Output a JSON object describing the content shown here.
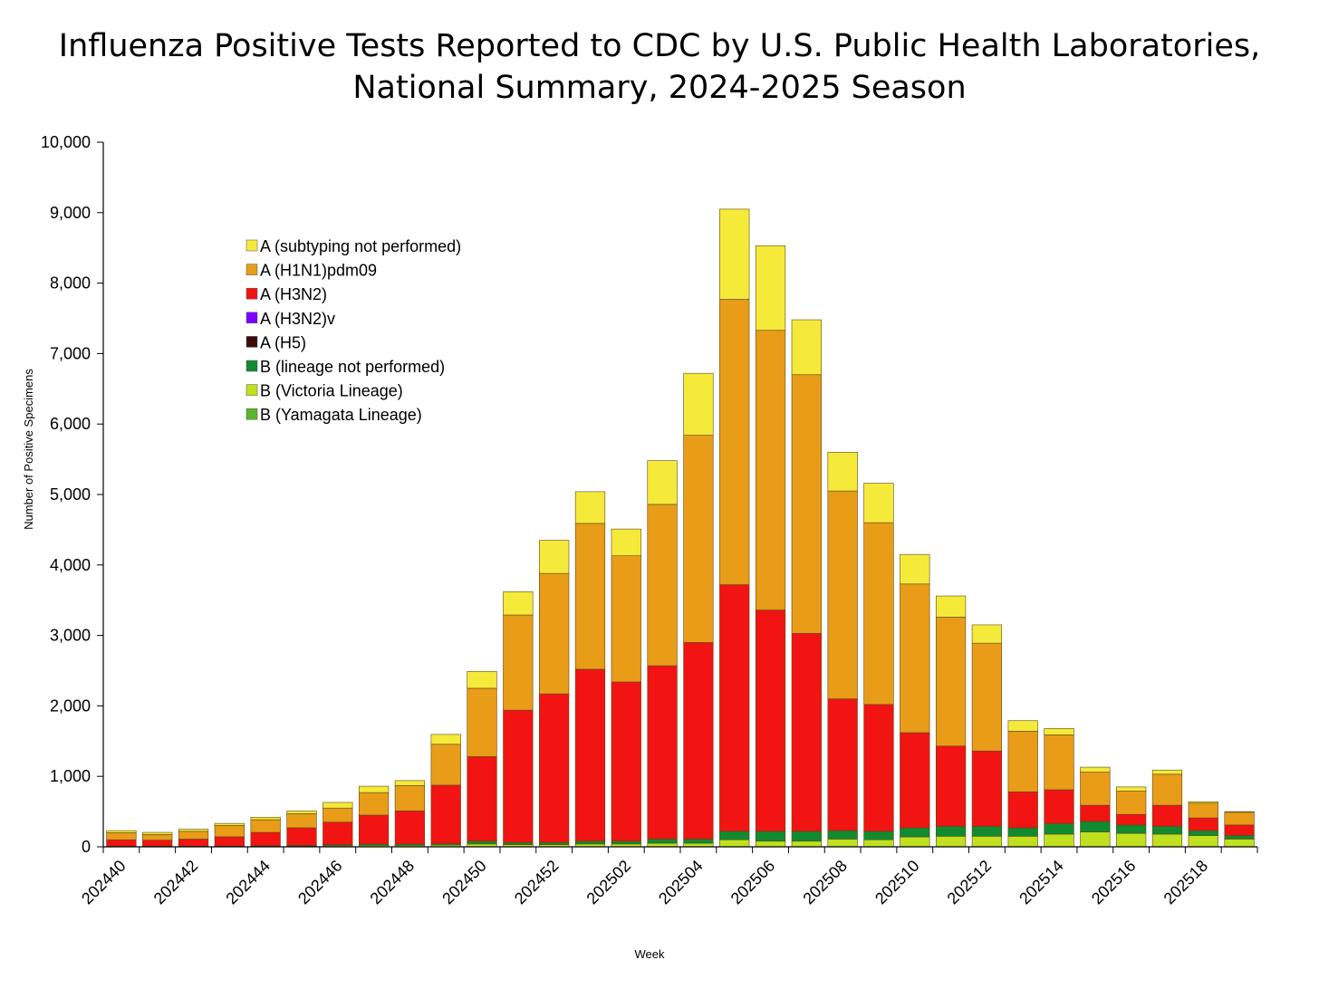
{
  "chart_data": {
    "type": "bar",
    "stacked": true,
    "title": "Influenza Positive Tests Reported to CDC by U.S. Public Health Laboratories,\nNational Summary, 2024-2025 Season",
    "xlabel": "Week",
    "ylabel": "Number of Positive Specimens",
    "ylim": [
      0,
      10000
    ],
    "yticks": [
      0,
      1000,
      2000,
      3000,
      4000,
      5000,
      6000,
      7000,
      8000,
      9000,
      10000
    ],
    "ytick_labels": [
      "0",
      "1,000",
      "2,000",
      "3,000",
      "4,000",
      "5,000",
      "6,000",
      "7,000",
      "8,000",
      "9,000",
      "10,000"
    ],
    "xtick_labels": [
      "202440",
      "202442",
      "202444",
      "202446",
      "202448",
      "202450",
      "202452",
      "202502",
      "202504",
      "202506",
      "202508",
      "202510",
      "202512",
      "202514",
      "202516",
      "202518"
    ],
    "legend_placement": "upper-left",
    "grid": false,
    "categories": [
      "202440",
      "202441",
      "202442",
      "202443",
      "202444",
      "202445",
      "202446",
      "202447",
      "202448",
      "202449",
      "202450",
      "202451",
      "202452",
      "202501",
      "202502",
      "202503",
      "202504",
      "202505",
      "202506",
      "202507",
      "202508",
      "202509",
      "202510",
      "202511",
      "202512",
      "202513",
      "202514",
      "202515",
      "202516",
      "202517",
      "202518",
      "202519"
    ],
    "series": [
      {
        "name": "B (Yamagata Lineage)",
        "color": "#5bb52a",
        "values": [
          0,
          0,
          0,
          0,
          0,
          0,
          0,
          0,
          0,
          0,
          0,
          0,
          0,
          0,
          0,
          0,
          0,
          0,
          0,
          0,
          0,
          0,
          0,
          0,
          0,
          0,
          0,
          0,
          0,
          0,
          0,
          0
        ]
      },
      {
        "name": "B (Victoria Lineage)",
        "color": "#c0e020",
        "values": [
          5,
          5,
          5,
          6,
          8,
          10,
          15,
          20,
          20,
          25,
          40,
          30,
          30,
          40,
          40,
          50,
          50,
          100,
          80,
          80,
          110,
          100,
          140,
          150,
          150,
          150,
          180,
          210,
          190,
          180,
          160,
          110
        ]
      },
      {
        "name": "B (lineage not performed)",
        "color": "#118a30",
        "values": [
          5,
          5,
          5,
          6,
          7,
          10,
          15,
          20,
          20,
          20,
          40,
          30,
          30,
          40,
          40,
          60,
          60,
          120,
          140,
          140,
          120,
          120,
          130,
          140,
          140,
          120,
          150,
          150,
          120,
          110,
          70,
          50
        ]
      },
      {
        "name": "A (H5)",
        "color": "#3d0a0a",
        "values": [
          0,
          0,
          0,
          0,
          0,
          0,
          0,
          0,
          0,
          0,
          0,
          0,
          0,
          0,
          0,
          0,
          0,
          0,
          0,
          0,
          0,
          0,
          0,
          0,
          0,
          0,
          0,
          0,
          0,
          0,
          0,
          0
        ]
      },
      {
        "name": "A (H3N2)v",
        "color": "#8000ff",
        "values": [
          0,
          0,
          0,
          0,
          0,
          0,
          0,
          0,
          0,
          0,
          0,
          0,
          0,
          0,
          0,
          0,
          0,
          0,
          0,
          0,
          0,
          0,
          0,
          0,
          0,
          0,
          0,
          0,
          0,
          0,
          0,
          0
        ]
      },
      {
        "name": "A (H3N2)",
        "color": "#f21313",
        "values": [
          90,
          85,
          100,
          130,
          190,
          250,
          320,
          410,
          470,
          830,
          1200,
          1880,
          2110,
          2440,
          2260,
          2460,
          2790,
          3500,
          3140,
          2810,
          1870,
          1800,
          1350,
          1140,
          1070,
          510,
          480,
          230,
          150,
          300,
          180,
          150
        ]
      },
      {
        "name": "A (H1N1)pdm09",
        "color": "#e89c18",
        "values": [
          100,
          80,
          110,
          160,
          180,
          200,
          200,
          320,
          360,
          580,
          970,
          1350,
          1710,
          2070,
          1790,
          2290,
          2940,
          4050,
          3970,
          3670,
          2950,
          2580,
          2110,
          1830,
          1530,
          860,
          780,
          470,
          330,
          440,
          210,
          180
        ]
      },
      {
        "name": "A (subtyping not performed)",
        "color": "#f5ea3a",
        "values": [
          30,
          30,
          30,
          30,
          35,
          40,
          80,
          90,
          70,
          140,
          240,
          330,
          470,
          450,
          380,
          620,
          880,
          1280,
          1200,
          780,
          550,
          560,
          420,
          300,
          260,
          150,
          90,
          70,
          60,
          60,
          20,
          10
        ]
      }
    ],
    "legend_order": [
      "A (subtyping not performed)",
      "A (H1N1)pdm09",
      "A (H3N2)",
      "A (H3N2)v",
      "A (H5)",
      "B (lineage not performed)",
      "B (Victoria Lineage)",
      "B (Yamagata Lineage)"
    ]
  }
}
